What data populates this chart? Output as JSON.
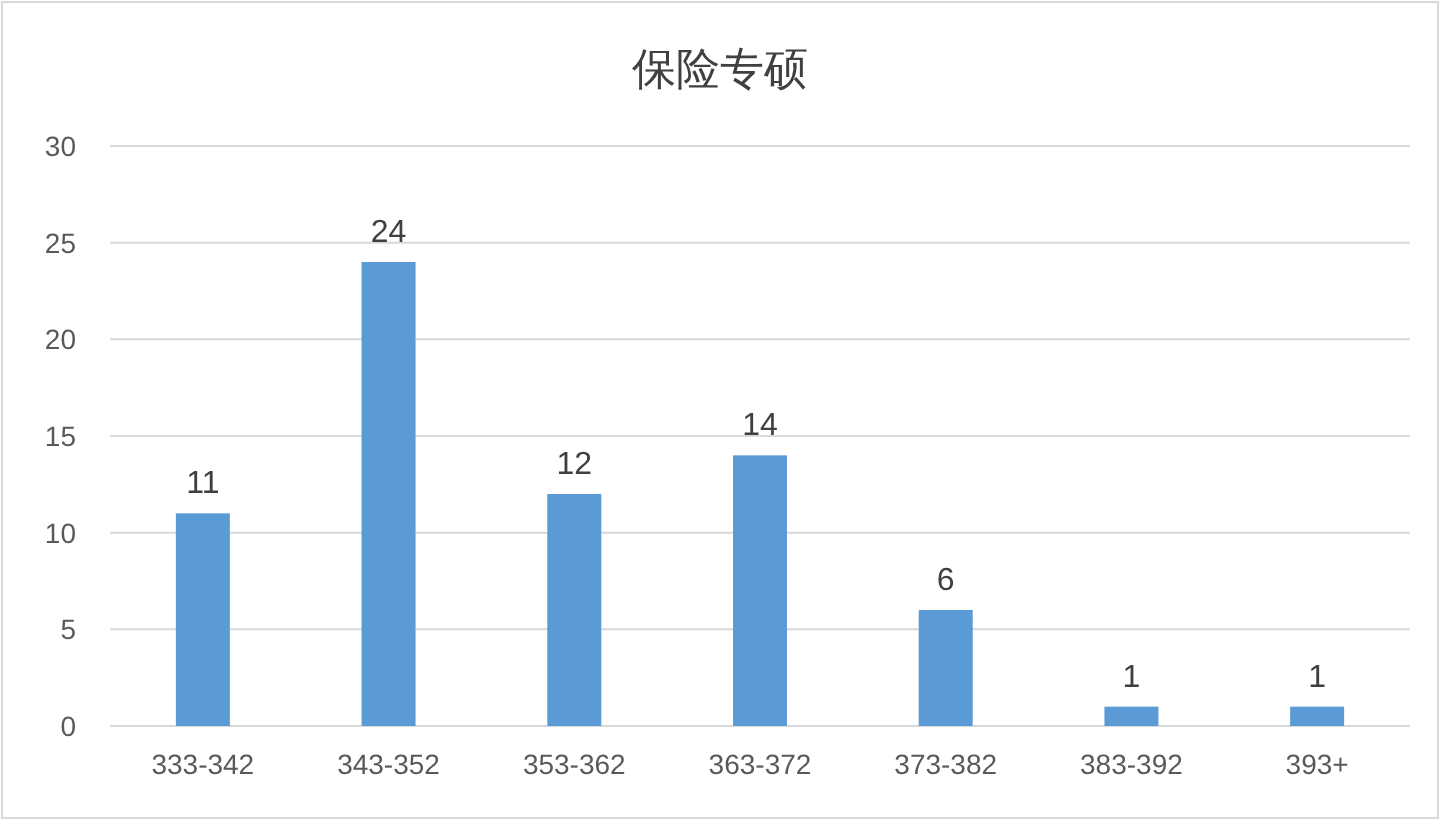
{
  "chart_data": {
    "type": "bar",
    "title": "保险专硕",
    "categories": [
      "333-342",
      "343-352",
      "353-362",
      "363-372",
      "373-382",
      "383-392",
      "393+"
    ],
    "values": [
      11,
      24,
      12,
      14,
      6,
      1,
      1
    ],
    "color": "#5b9bd5",
    "ylim": [
      0,
      30
    ],
    "yticks": [
      0,
      5,
      10,
      15,
      20,
      25,
      30
    ],
    "grid": "y",
    "data_labels": true
  }
}
